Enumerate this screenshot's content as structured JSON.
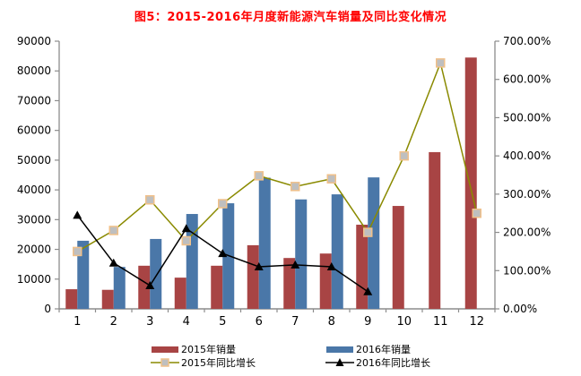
{
  "title": "图5：2015-2016年月度新能源汽车销量及同比变化情况",
  "styles": {
    "title_color": "#ff0000",
    "axis_color": "#8c8c8c",
    "text_color": "#000000"
  },
  "chart_data": {
    "type": "bar",
    "subtype": "combo-bar-line-dual-axis",
    "categories": [
      "1",
      "2",
      "3",
      "4",
      "5",
      "6",
      "7",
      "8",
      "9",
      "10",
      "11",
      "12"
    ],
    "series": [
      {
        "name": "2015年销量",
        "type": "bar",
        "axis": "left",
        "color": "#a84444",
        "values": [
          6600,
          6400,
          14500,
          10500,
          14500,
          21400,
          17100,
          18600,
          28300,
          34600,
          52700,
          84500
        ]
      },
      {
        "name": "2016年销量",
        "type": "bar",
        "axis": "left",
        "color": "#4a77a8",
        "values": [
          22900,
          14100,
          23500,
          31900,
          35500,
          44100,
          36800,
          38500,
          44200,
          null,
          null,
          null
        ]
      },
      {
        "name": "2015年同比增长",
        "type": "line",
        "axis": "right",
        "color": "#8a8a00",
        "marker": "square",
        "marker_fill": "#bfbfbf",
        "marker_border": "#f0c08a",
        "values": [
          150,
          205,
          285,
          178,
          275,
          348,
          320,
          340,
          200,
          400,
          643,
          250
        ]
      },
      {
        "name": "2016年同比增长",
        "type": "line",
        "axis": "right",
        "color": "#000000",
        "marker": "triangle",
        "marker_fill": "#000000",
        "marker_border": "#000000",
        "values": [
          245,
          120,
          61,
          210,
          145,
          110,
          115,
          110,
          45,
          null,
          null,
          null
        ]
      }
    ],
    "left_axis": {
      "min": 0,
      "max": 90000,
      "step": 10000,
      "tick_labels": [
        "0",
        "10000",
        "20000",
        "30000",
        "40000",
        "50000",
        "60000",
        "70000",
        "80000",
        "90000"
      ]
    },
    "right_axis": {
      "min": 0,
      "max": 700,
      "step": 100,
      "tick_labels": [
        "0.00%",
        "100.00%",
        "200.00%",
        "300.00%",
        "400.00%",
        "500.00%",
        "600.00%",
        "700.00%"
      ]
    },
    "x_axis": {
      "labels": [
        "1",
        "2",
        "3",
        "4",
        "5",
        "6",
        "7",
        "8",
        "9",
        "10",
        "11",
        "12"
      ]
    },
    "legend_position": "bottom",
    "grid": false,
    "ylim_left": [
      0,
      90000
    ],
    "ylim_right_pct": [
      0,
      700
    ]
  }
}
